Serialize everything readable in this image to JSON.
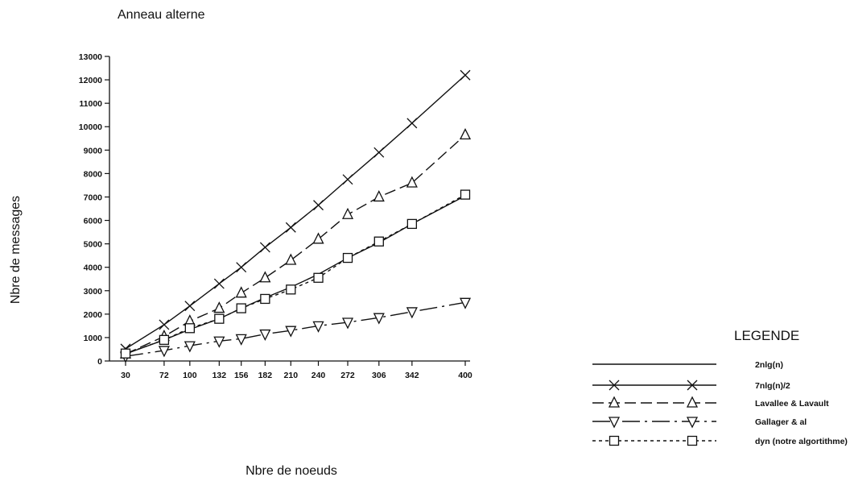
{
  "chart_data": {
    "type": "line",
    "title": "Anneau alterne",
    "xlabel": "Nbre de noeuds",
    "ylabel": "Nbre de messages",
    "x": [
      30,
      72,
      100,
      132,
      156,
      182,
      210,
      240,
      272,
      306,
      342,
      400
    ],
    "x_tick_labels": [
      "30",
      "72",
      "100",
      "132",
      "156",
      "182",
      "210",
      "240",
      "272",
      "306",
      "342",
      "400"
    ],
    "ylim": [
      0,
      13000
    ],
    "y_ticks": [
      0,
      1000,
      2000,
      3000,
      4000,
      5000,
      6000,
      7000,
      8000,
      9000,
      10000,
      11000,
      12000,
      13000
    ],
    "y_tick_labels": [
      "0",
      "1000",
      "2000",
      "3000",
      "4000",
      "5000",
      "6000",
      "7000",
      "8000",
      "9000",
      "10000",
      "11000",
      "12000",
      "13000"
    ],
    "grid": false,
    "legend_title": "LEGENDE",
    "legend_placement": "bottom-right",
    "series": [
      {
        "name": "2nlg(n)",
        "marker": "none",
        "dash": "solid",
        "values": [
          300,
          900,
          1350,
          1800,
          2250,
          2700,
          3150,
          3700,
          4400,
          5050,
          5850,
          7050
        ]
      },
      {
        "name": "7nlg(n)/2",
        "marker": "x",
        "dash": "solid",
        "values": [
          520,
          1550,
          2350,
          3300,
          4000,
          4850,
          5700,
          6650,
          7750,
          8900,
          10150,
          12200
        ]
      },
      {
        "name": "Lavallee & Lavault",
        "marker": "triangle-up",
        "dash": "long-dash",
        "values": [
          300,
          1050,
          1700,
          2250,
          2900,
          3550,
          4300,
          5200,
          6250,
          7000,
          7600,
          9650
        ]
      },
      {
        "name": "Gallager & al",
        "marker": "triangle-down",
        "dash": "dash-dot",
        "values": [
          200,
          450,
          650,
          850,
          950,
          1150,
          1300,
          1500,
          1650,
          1850,
          2100,
          2500
        ]
      },
      {
        "name": "dyn (notre algortithme)",
        "marker": "square",
        "dash": "dotted",
        "values": [
          320,
          900,
          1400,
          1800,
          2250,
          2650,
          3050,
          3550,
          4400,
          5100,
          5850,
          7100
        ]
      }
    ]
  }
}
